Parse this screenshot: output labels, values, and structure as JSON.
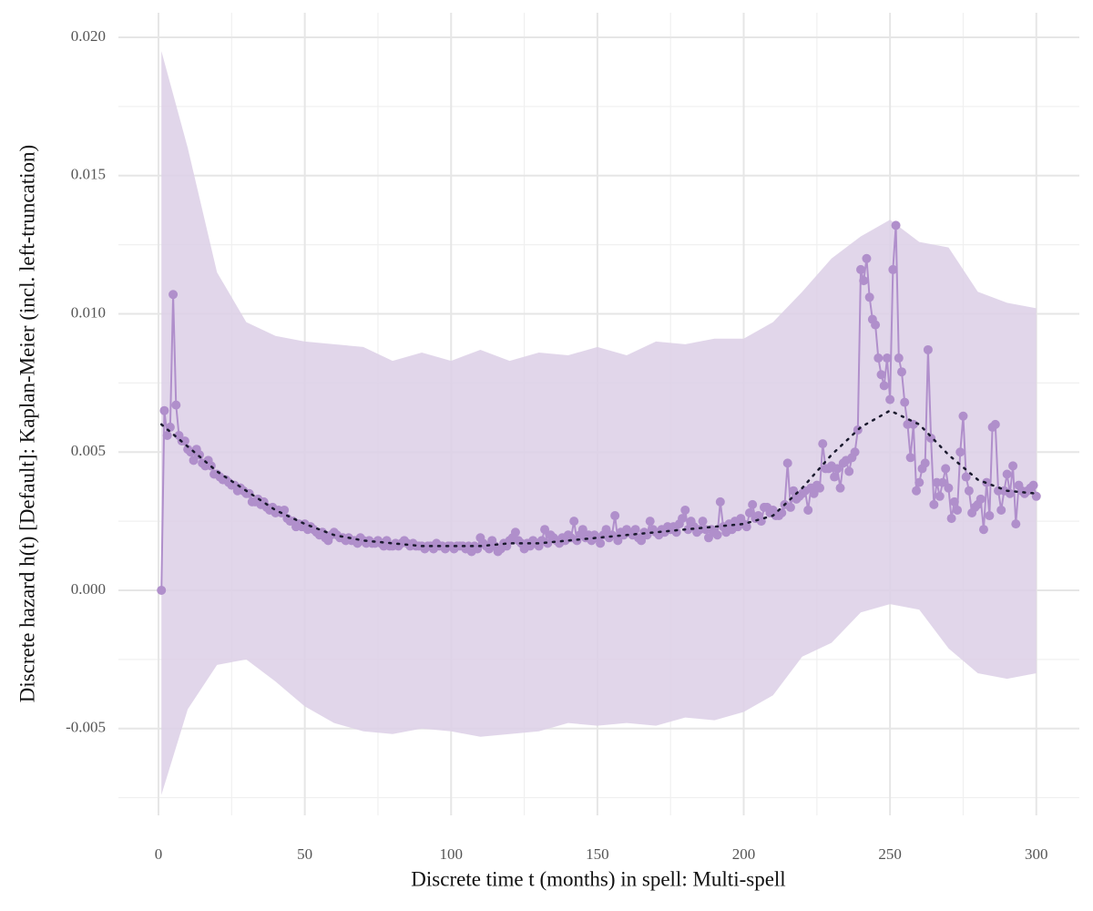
{
  "chart_data": {
    "type": "line",
    "x_label": "Discrete time t (months) in spell: Multi-spell",
    "y_label": "Discrete hazard  h(t) [Default]:  Kaplan-Meier (incl. left-truncation)",
    "xlim": [
      -13.7,
      314.7
    ],
    "ylim": [
      -0.00814,
      0.02089
    ],
    "xticks": [
      0,
      50,
      100,
      150,
      200,
      250,
      300
    ],
    "x_minor_ticks": [
      25,
      75,
      125,
      175,
      225,
      275
    ],
    "yticks": [
      -0.005,
      {
        "value": 0,
        "label": "0.000"
      },
      0.005,
      {
        "value": 0.01,
        "label": "0.010"
      },
      0.015,
      {
        "value": 0.02,
        "label": "0.020"
      }
    ],
    "y_minor_ticks": [
      -0.0075,
      -0.0025,
      0.0025,
      0.0075,
      0.0125,
      0.0175
    ],
    "grid": true,
    "band": {
      "color": "#dccfe6",
      "x": [
        1,
        10,
        20,
        30,
        40,
        50,
        60,
        70,
        80,
        90,
        100,
        110,
        120,
        130,
        140,
        150,
        160,
        170,
        180,
        190,
        200,
        210,
        220,
        230,
        240,
        250,
        260,
        270,
        280,
        290,
        300
      ],
      "upper": [
        0.0195,
        0.016,
        0.0115,
        0.0097,
        0.0092,
        0.009,
        0.0089,
        0.0088,
        0.0083,
        0.0086,
        0.0083,
        0.0087,
        0.0083,
        0.0086,
        0.0085,
        0.0088,
        0.0085,
        0.009,
        0.0089,
        0.0091,
        0.0091,
        0.0097,
        0.0108,
        0.012,
        0.0128,
        0.0134,
        0.0126,
        0.0124,
        0.0108,
        0.0104,
        0.0102
      ],
      "lower": [
        -0.0074,
        -0.0043,
        -0.0027,
        -0.0025,
        -0.0033,
        -0.0042,
        -0.0048,
        -0.0051,
        -0.0052,
        -0.005,
        -0.0051,
        -0.0053,
        -0.0052,
        -0.0051,
        -0.0048,
        -0.0049,
        -0.0048,
        -0.0049,
        -0.0046,
        -0.0047,
        -0.0044,
        -0.0038,
        -0.0024,
        -0.0019,
        -0.0008,
        -0.0005,
        -0.0007,
        -0.0021,
        -0.003,
        -0.0032,
        -0.003
      ]
    },
    "series": [
      {
        "color": "#b08fcb",
        "style": "line-points",
        "x": [
          1,
          2,
          3,
          4,
          5,
          6,
          7,
          8,
          9,
          10,
          11,
          12,
          13,
          14,
          15,
          16,
          17,
          18,
          19,
          20,
          21,
          22,
          23,
          24,
          25,
          26,
          27,
          28,
          29,
          30,
          31,
          32,
          33,
          34,
          35,
          36,
          37,
          38,
          39,
          40,
          41,
          42,
          43,
          44,
          45,
          46,
          47,
          48,
          49,
          50,
          51,
          52,
          53,
          54,
          55,
          56,
          57,
          58,
          59,
          60,
          61,
          62,
          63,
          64,
          65,
          66,
          67,
          68,
          69,
          70,
          71,
          72,
          73,
          74,
          75,
          76,
          77,
          78,
          79,
          80,
          81,
          82,
          83,
          84,
          85,
          86,
          87,
          88,
          89,
          90,
          91,
          92,
          93,
          94,
          95,
          96,
          97,
          98,
          99,
          100,
          101,
          102,
          103,
          104,
          105,
          106,
          107,
          108,
          109,
          110,
          111,
          112,
          113,
          114,
          115,
          116,
          117,
          118,
          119,
          120,
          121,
          122,
          123,
          124,
          125,
          126,
          127,
          128,
          129,
          130,
          131,
          132,
          133,
          134,
          135,
          136,
          137,
          138,
          139,
          140,
          141,
          142,
          143,
          144,
          145,
          146,
          147,
          148,
          149,
          150,
          151,
          152,
          153,
          154,
          155,
          156,
          157,
          158,
          159,
          160,
          161,
          162,
          163,
          164,
          165,
          166,
          167,
          168,
          169,
          170,
          171,
          172,
          173,
          174,
          175,
          176,
          177,
          178,
          179,
          180,
          181,
          182,
          183,
          184,
          185,
          186,
          187,
          188,
          189,
          190,
          191,
          192,
          193,
          194,
          195,
          196,
          197,
          198,
          199,
          200,
          201,
          202,
          203,
          204,
          205,
          206,
          207,
          208,
          209,
          210,
          211,
          212,
          213,
          214,
          215,
          216,
          217,
          218,
          219,
          220,
          221,
          222,
          223,
          224,
          225,
          226,
          227,
          228,
          229,
          230,
          231,
          232,
          233,
          234,
          235,
          236,
          237,
          238,
          239,
          240,
          241,
          242,
          243,
          244,
          245,
          246,
          247,
          248,
          249,
          250,
          251,
          252,
          253,
          254,
          255,
          256,
          257,
          258,
          259,
          260,
          261,
          262,
          263,
          264,
          265,
          266,
          267,
          268,
          269,
          270,
          271,
          272,
          273,
          274,
          275,
          276,
          277,
          278,
          279,
          280,
          281,
          282,
          283,
          284,
          285,
          286,
          287,
          288,
          289,
          290,
          291,
          292,
          293,
          294,
          295,
          296,
          297,
          298,
          299,
          300
        ],
        "values": [
          0,
          0.0065,
          0.0056,
          0.0059,
          0.0107,
          0.0067,
          0.0056,
          0.0054,
          0.0054,
          0.0051,
          0.005,
          0.0047,
          0.0051,
          0.0049,
          0.0046,
          0.0045,
          0.0047,
          0.0045,
          0.0042,
          0.0042,
          0.0041,
          0.004,
          0.004,
          0.0039,
          0.0038,
          0.0038,
          0.0036,
          0.0037,
          0.0036,
          0.0035,
          0.0035,
          0.0032,
          0.0032,
          0.0033,
          0.0031,
          0.0032,
          0.003,
          0.0029,
          0.003,
          0.0028,
          0.0029,
          0.0028,
          0.0029,
          0.0026,
          0.0025,
          0.0025,
          0.0023,
          0.0024,
          0.0023,
          0.0024,
          0.0022,
          0.0023,
          0.0022,
          0.0021,
          0.002,
          0.0021,
          0.0019,
          0.0018,
          0.002,
          0.0021,
          0.002,
          0.0019,
          0.0019,
          0.0018,
          0.0019,
          0.0018,
          0.0018,
          0.0017,
          0.0019,
          0.0018,
          0.0017,
          0.0018,
          0.0017,
          0.0017,
          0.0018,
          0.0017,
          0.0016,
          0.0018,
          0.0016,
          0.0016,
          0.0017,
          0.0016,
          0.0017,
          0.0018,
          0.0017,
          0.0016,
          0.0017,
          0.0016,
          0.0016,
          0.0016,
          0.0015,
          0.0016,
          0.0016,
          0.0015,
          0.0017,
          0.0016,
          0.0016,
          0.0015,
          0.0016,
          0.0016,
          0.0015,
          0.0016,
          0.0016,
          0.0016,
          0.0015,
          0.0016,
          0.0014,
          0.0016,
          0.0015,
          0.0019,
          0.0017,
          0.0016,
          0.0015,
          0.0018,
          0.0016,
          0.0014,
          0.0015,
          0.0017,
          0.0016,
          0.0018,
          0.0019,
          0.0021,
          0.0018,
          0.0017,
          0.0015,
          0.0017,
          0.0016,
          0.0018,
          0.0017,
          0.0016,
          0.0018,
          0.0022,
          0.0017,
          0.002,
          0.0019,
          0.0018,
          0.0017,
          0.0019,
          0.0018,
          0.002,
          0.0019,
          0.0025,
          0.0018,
          0.002,
          0.0022,
          0.0019,
          0.002,
          0.0018,
          0.002,
          0.0019,
          0.0017,
          0.002,
          0.0022,
          0.0019,
          0.002,
          0.0027,
          0.0018,
          0.0021,
          0.002,
          0.0022,
          0.0021,
          0.002,
          0.0022,
          0.0019,
          0.0018,
          0.0021,
          0.002,
          0.0025,
          0.0022,
          0.0021,
          0.002,
          0.0022,
          0.0021,
          0.0023,
          0.0022,
          0.0023,
          0.0021,
          0.0024,
          0.0026,
          0.0029,
          0.0022,
          0.0025,
          0.0023,
          0.0021,
          0.0022,
          0.0025,
          0.0022,
          0.0019,
          0.0022,
          0.0021,
          0.002,
          0.0032,
          0.0023,
          0.0021,
          0.0024,
          0.0022,
          0.0025,
          0.0023,
          0.0026,
          0.0024,
          0.0023,
          0.0028,
          0.0031,
          0.0026,
          0.0027,
          0.0025,
          0.003,
          0.003,
          0.0028,
          0.0029,
          0.0027,
          0.0027,
          0.0028,
          0.0031,
          0.0046,
          0.003,
          0.0036,
          0.0033,
          0.0034,
          0.0035,
          0.0036,
          0.0029,
          0.0037,
          0.0035,
          0.0038,
          0.0037,
          0.0053,
          0.0044,
          0.0044,
          0.0045,
          0.0041,
          0.0044,
          0.0037,
          0.0046,
          0.0047,
          0.0043,
          0.0048,
          0.005,
          0.0058,
          0.0116,
          0.0112,
          0.012,
          0.0106,
          0.0098,
          0.0096,
          0.0084,
          0.0078,
          0.0074,
          0.0084,
          0.0069,
          0.0116,
          0.0132,
          0.0084,
          0.0079,
          0.0068,
          0.006,
          0.0048,
          0.006,
          0.0036,
          0.0039,
          0.0044,
          0.0046,
          0.0087,
          0.0055,
          0.0031,
          0.0039,
          0.0034,
          0.0039,
          0.0044,
          0.0037,
          0.0026,
          0.0032,
          0.0029,
          0.005,
          0.0063,
          0.0041,
          0.0036,
          0.0028,
          0.003,
          0.0031,
          0.0033,
          0.0022,
          0.0039,
          0.0027,
          0.0059,
          0.006,
          0.0036,
          0.0029,
          0.0036,
          0.0042,
          0.0035,
          0.0045,
          0.0024,
          0.0038,
          0.0036,
          0.0035,
          0.0036,
          0.0037,
          0.0038,
          0.0034
        ]
      },
      {
        "color": "#1a1a2e",
        "style": "dotted",
        "x": [
          1,
          10,
          20,
          30,
          40,
          50,
          60,
          70,
          80,
          90,
          100,
          110,
          120,
          130,
          140,
          150,
          160,
          170,
          180,
          190,
          200,
          210,
          220,
          230,
          240,
          250,
          260,
          270,
          280,
          290,
          300
        ],
        "values": [
          0.006,
          0.0052,
          0.0043,
          0.0036,
          0.0029,
          0.0024,
          0.002,
          0.0018,
          0.0017,
          0.0016,
          0.0016,
          0.0016,
          0.0017,
          0.0017,
          0.0018,
          0.0019,
          0.002,
          0.0021,
          0.0022,
          0.0023,
          0.0024,
          0.0027,
          0.0037,
          0.0049,
          0.0059,
          0.0065,
          0.006,
          0.0049,
          0.004,
          0.0036,
          0.0035
        ]
      }
    ]
  }
}
